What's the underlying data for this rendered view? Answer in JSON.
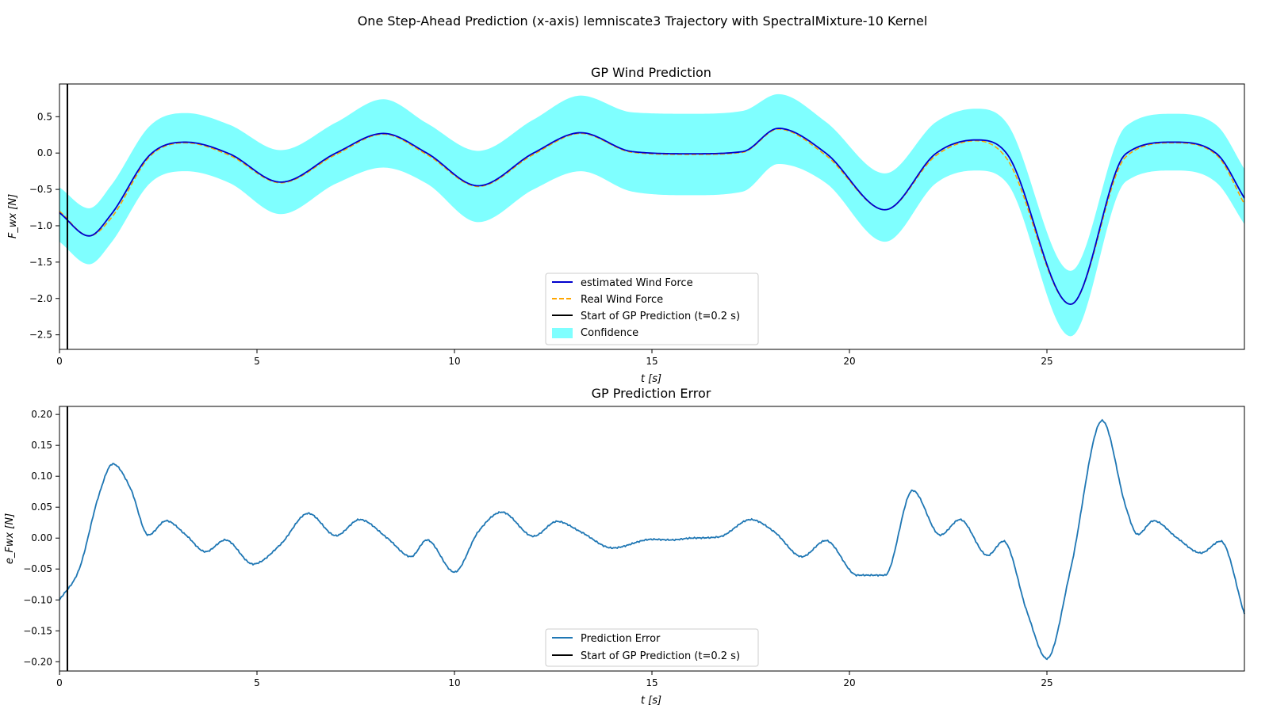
{
  "figure": {
    "suptitle": "One Step-Ahead Prediction (x-axis) lemniscate3 Trajectory with SpectralMixture-10 Kernel",
    "colors": {
      "estimate": "#0000cc",
      "real": "#ffa500",
      "confidence": "#00ffff",
      "error": "#1f77b4",
      "start_line": "#000000"
    }
  },
  "chart_data": [
    {
      "type": "line",
      "title": "GP Wind Prediction",
      "xlabel": "t [s]",
      "ylabel": "F_wx [N]",
      "xlim": [
        0,
        30
      ],
      "ylim": [
        -2.7,
        0.95
      ],
      "xticks": [
        0,
        5,
        10,
        15,
        20,
        25
      ],
      "xtick_labels": [
        "0",
        "5",
        "10",
        "15",
        "20",
        "25"
      ],
      "yticks": [
        -2.5,
        -2.0,
        -1.5,
        -1.0,
        -0.5,
        0.0,
        0.5
      ],
      "ytick_labels": [
        "−2.5",
        "−2.0",
        "−1.5",
        "−1.0",
        "−0.5",
        "0.0",
        "0.5"
      ],
      "vline_x": 0.2,
      "legend_position": "lower center",
      "legend": [
        "estimated Wind Force",
        "Real Wind Force",
        "Start of GP Prediction (t=0.2 s)",
        "Confidence"
      ],
      "x": [
        0,
        0.75,
        1.3,
        2.3,
        3.2,
        4.3,
        5.6,
        7.0,
        8.2,
        9.3,
        10.6,
        12.0,
        13.2,
        14.5,
        16.0,
        17.3,
        18.2,
        19.4,
        20.9,
        22.2,
        23.2,
        24.0,
        25.6,
        27.0,
        28.2,
        29.3,
        30.0
      ],
      "series": [
        {
          "name": "estimated Wind Force",
          "style": "solid",
          "values": [
            -0.82,
            -1.14,
            -0.85,
            -0.02,
            0.15,
            -0.01,
            -0.4,
            0.0,
            0.27,
            0.0,
            -0.45,
            0.0,
            0.28,
            0.02,
            -0.01,
            0.02,
            0.34,
            0.0,
            -0.78,
            0.0,
            0.18,
            -0.02,
            -2.08,
            -0.01,
            0.15,
            -0.01,
            -0.62
          ]
        },
        {
          "name": "Real Wind Force",
          "style": "dashed",
          "values": [
            -0.8,
            -1.14,
            -0.9,
            -0.04,
            0.14,
            -0.03,
            -0.41,
            -0.02,
            0.26,
            -0.02,
            -0.46,
            -0.02,
            0.27,
            0.01,
            -0.02,
            0.01,
            0.33,
            -0.03,
            -0.78,
            -0.03,
            0.17,
            -0.09,
            -2.08,
            -0.05,
            0.14,
            -0.03,
            -0.7
          ]
        }
      ],
      "confidence": {
        "name": "Confidence",
        "x": [
          0,
          0.75,
          1.3,
          2.3,
          3.2,
          4.3,
          5.6,
          7.0,
          8.2,
          9.3,
          10.6,
          12.0,
          13.2,
          14.5,
          16.0,
          17.3,
          18.2,
          19.4,
          20.9,
          22.2,
          23.2,
          24.0,
          25.6,
          27.0,
          28.2,
          29.3,
          30.0
        ],
        "upper": [
          -0.47,
          -0.76,
          -0.45,
          0.38,
          0.55,
          0.39,
          0.04,
          0.42,
          0.74,
          0.41,
          0.03,
          0.46,
          0.79,
          0.56,
          0.54,
          0.58,
          0.81,
          0.43,
          -0.28,
          0.43,
          0.61,
          0.4,
          -1.62,
          0.37,
          0.54,
          0.38,
          -0.22
        ],
        "lower": [
          -1.22,
          -1.53,
          -1.24,
          -0.41,
          -0.25,
          -0.41,
          -0.84,
          -0.42,
          -0.2,
          -0.42,
          -0.95,
          -0.5,
          -0.25,
          -0.53,
          -0.58,
          -0.53,
          -0.15,
          -0.41,
          -1.22,
          -0.41,
          -0.24,
          -0.42,
          -2.52,
          -0.39,
          -0.24,
          -0.41,
          -0.98
        ]
      }
    },
    {
      "type": "line",
      "title": "GP Prediction Error",
      "xlabel": "t [s]",
      "ylabel": "e_Fwx [N]",
      "xlim": [
        0,
        30
      ],
      "ylim": [
        -0.215,
        0.213
      ],
      "xticks": [
        0,
        5,
        10,
        15,
        20,
        25
      ],
      "xtick_labels": [
        "0",
        "5",
        "10",
        "15",
        "20",
        "25"
      ],
      "yticks": [
        -0.2,
        -0.15,
        -0.1,
        -0.05,
        0.0,
        0.05,
        0.1,
        0.15,
        0.2
      ],
      "ytick_labels": [
        "−0.20",
        "−0.15",
        "−0.10",
        "−0.05",
        "0.00",
        "0.05",
        "0.10",
        "0.15",
        "0.20"
      ],
      "vline_x": 0.2,
      "legend_position": "lower center",
      "legend": [
        "Prediction Error",
        "Start of GP Prediction (t=0.2 s)"
      ],
      "x": [
        0.0,
        0.5,
        1.0,
        1.35,
        1.8,
        2.25,
        2.7,
        3.2,
        3.7,
        4.2,
        4.9,
        5.6,
        6.3,
        7.0,
        7.6,
        8.3,
        8.9,
        9.3,
        10.0,
        10.6,
        11.2,
        12.0,
        12.6,
        13.2,
        14.0,
        15.0,
        15.5,
        16.0,
        16.7,
        17.5,
        18.1,
        18.8,
        19.4,
        20.2,
        20.9,
        21.6,
        22.3,
        22.8,
        23.5,
        23.9,
        24.5,
        25.0,
        25.6,
        26.4,
        27.0,
        27.3,
        27.7,
        28.3,
        28.9,
        29.4,
        30.0
      ],
      "series": [
        {
          "name": "Prediction Error",
          "style": "solid",
          "values": [
            -0.1,
            -0.05,
            0.07,
            0.12,
            0.08,
            0.005,
            0.028,
            0.005,
            -0.022,
            -0.003,
            -0.042,
            -0.01,
            0.04,
            0.004,
            0.03,
            0.0,
            -0.03,
            -0.003,
            -0.055,
            0.01,
            0.042,
            0.003,
            0.027,
            0.01,
            -0.016,
            -0.002,
            -0.003,
            0.0,
            0.002,
            0.03,
            0.01,
            -0.03,
            -0.004,
            -0.06,
            -0.06,
            0.077,
            0.005,
            0.03,
            -0.028,
            -0.005,
            -0.12,
            -0.195,
            -0.05,
            0.19,
            0.05,
            0.006,
            0.028,
            0.0,
            -0.024,
            -0.005,
            -0.123
          ]
        }
      ]
    }
  ]
}
